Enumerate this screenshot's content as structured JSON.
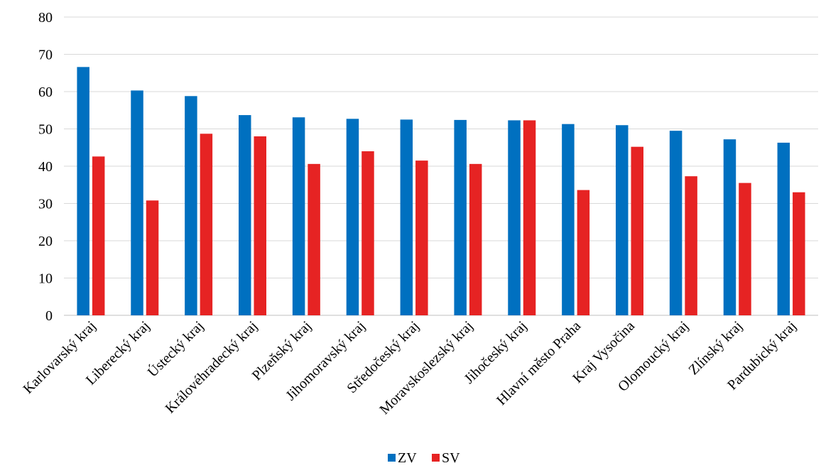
{
  "chart_data": {
    "type": "bar",
    "title": "",
    "xlabel": "",
    "ylabel": "",
    "ylim": [
      0,
      80
    ],
    "yticks": [
      0,
      10,
      20,
      30,
      40,
      50,
      60,
      70,
      80
    ],
    "grid": true,
    "legend_position": "bottom",
    "categories": [
      "Karlovarský kraj",
      "Liberecký kraj",
      "Ústecký kraj",
      "Královéhradecký kraj",
      "Plzeňský kraj",
      "Jihomoravský kraj",
      "Středočeský kraj",
      "Moravskoslezský kraj",
      "Jihočeský kraj",
      "Hlavní město Praha",
      "Kraj Vysočina",
      "Olomoucký kraj",
      "Zlínský kraj",
      "Pardubický kraj"
    ],
    "series": [
      {
        "name": "ZV",
        "color": "#0070c0",
        "values": [
          66.6,
          60.3,
          58.8,
          53.7,
          53.1,
          52.7,
          52.5,
          52.4,
          52.3,
          51.3,
          51.0,
          49.5,
          47.2,
          46.3
        ]
      },
      {
        "name": "SV",
        "color": "#e62323",
        "values": [
          42.6,
          30.8,
          48.7,
          48.0,
          40.6,
          44.0,
          41.5,
          40.6,
          52.3,
          33.6,
          45.2,
          37.3,
          35.5,
          33.0
        ]
      }
    ]
  }
}
